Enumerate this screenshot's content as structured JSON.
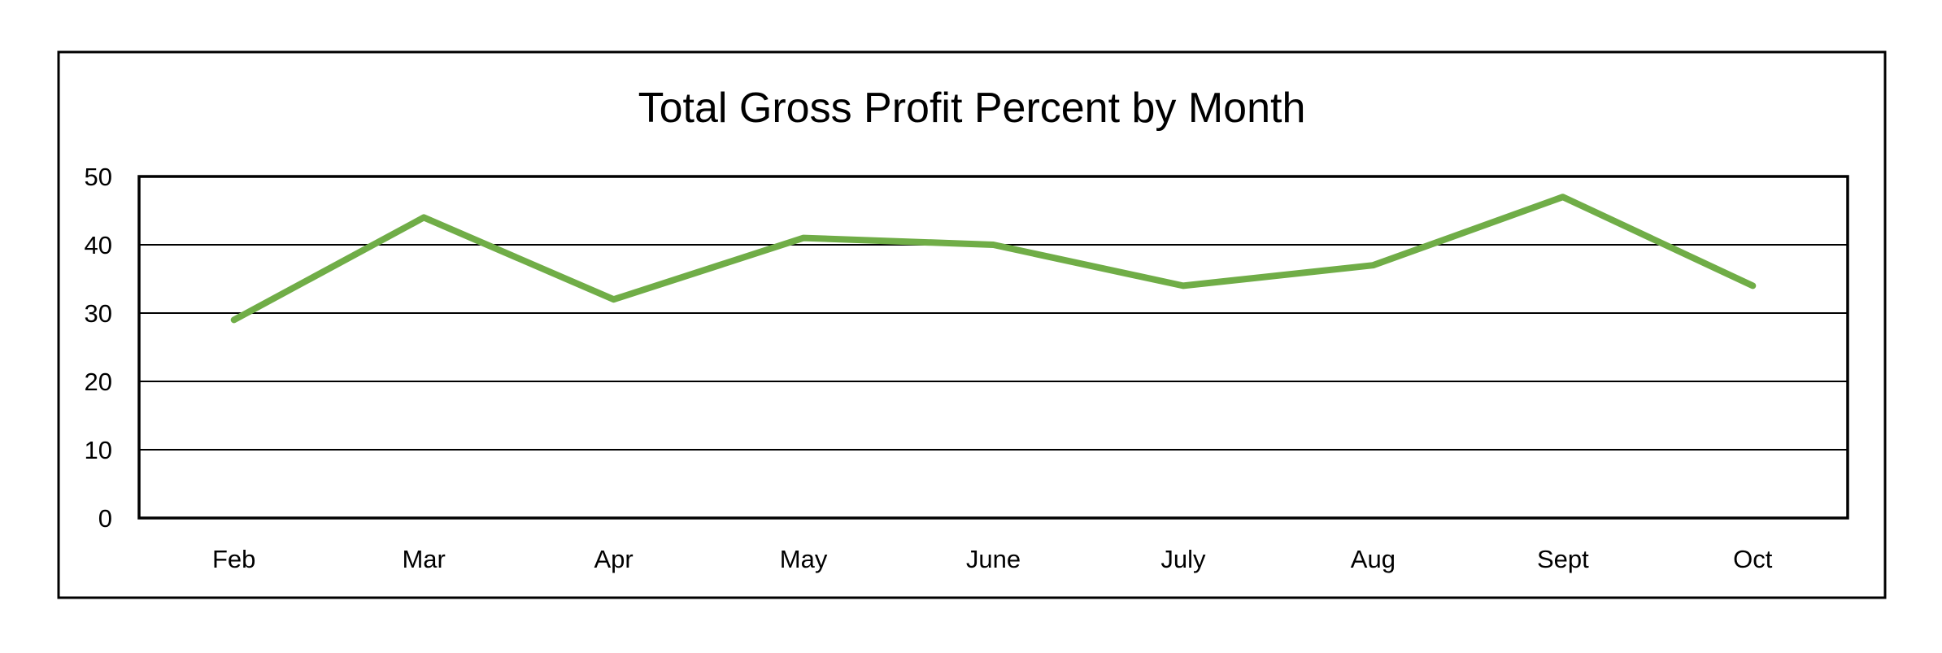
{
  "chart_data": {
    "type": "line",
    "title": "Total Gross Profit Percent by Month",
    "xlabel": "",
    "ylabel": "",
    "categories": [
      "Feb",
      "Mar",
      "Apr",
      "May",
      "June",
      "July",
      "Aug",
      "Sept",
      "Oct"
    ],
    "series": [
      {
        "values": [
          29,
          44,
          32,
          41,
          40,
          34,
          37,
          47,
          34
        ],
        "color": "#70AD47"
      }
    ],
    "ylim": [
      0,
      50
    ],
    "yticks": [
      "0",
      "10",
      "20",
      "30",
      "40",
      "50"
    ],
    "grid": true,
    "legend": "none"
  }
}
